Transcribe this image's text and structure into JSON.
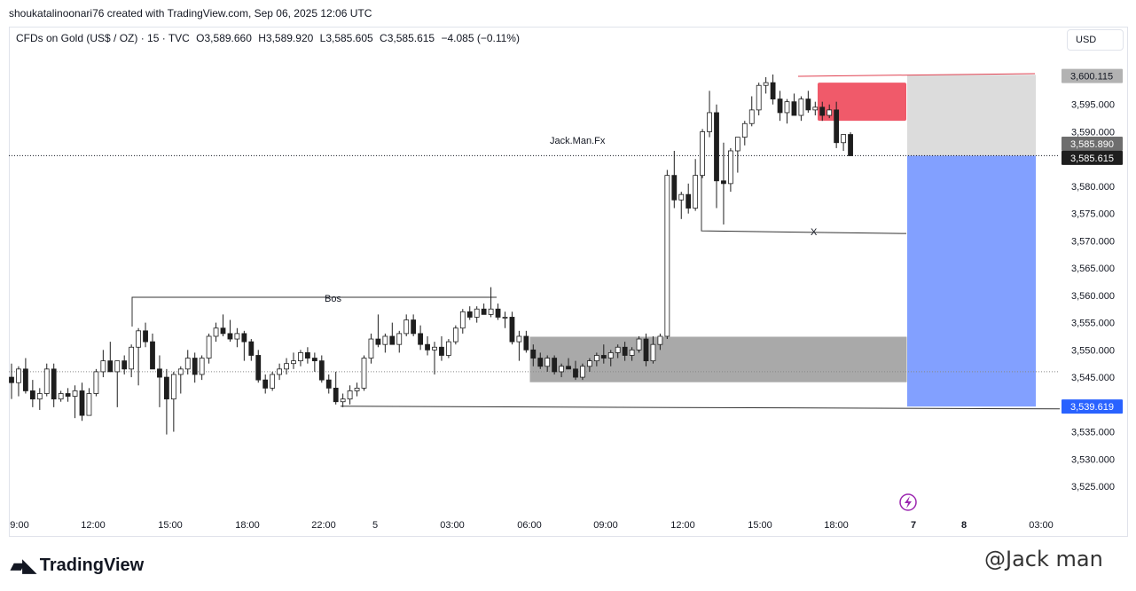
{
  "header": {
    "created_by": "shoukatalinoonari76 created with TradingView.com, Sep 06, 2025 12:06 UTC"
  },
  "symbol_bar": {
    "name": "CFDs on Gold (US$ / OZ) · 15 · TVC",
    "open": "O3,589.660",
    "high": "H3,589.920",
    "low": "L3,585.605",
    "close": "C3,585.615",
    "change": "−4.085 (−0.11%)"
  },
  "currency_button": "USD",
  "annotations": {
    "bos": "Bos",
    "x": "X",
    "author": "Jack.Man.Fx"
  },
  "price_labels": {
    "target_price": "3,600.115",
    "last_close": "3,585.890",
    "current_price": "3,585.615",
    "stop_price": "3,539.619"
  },
  "footer": {
    "logo": "TradingView",
    "watermark": "@Jack man"
  },
  "colors": {
    "up_candle": "#ffffff",
    "down_candle": "#1e1e1e",
    "supply_zone": "#f05a6a",
    "demand_zone": "#a9a9a9",
    "target_box": "#dcdcdc",
    "stop_box": "#82a0ff",
    "price_badge": "#2962ff"
  },
  "chart_data": {
    "type": "candlestick",
    "title": "CFDs on Gold (US$ / OZ) · 15 · TVC",
    "y_ticks": [
      "3,595.000",
      "3,590.000",
      "3,580.000",
      "3,575.000",
      "3,570.000",
      "3,565.000",
      "3,560.000",
      "3,555.000",
      "3,550.000",
      "3,545.000",
      "3,535.000",
      "3,530.000",
      "3,525.000"
    ],
    "x_ticks": [
      "9:00",
      "12:00",
      "15:00",
      "18:00",
      "22:00",
      "5",
      "03:00",
      "06:00",
      "09:00",
      "12:00",
      "15:00",
      "18:00",
      "7",
      "8",
      "03:00"
    ],
    "ylim": [
      3520,
      3605
    ],
    "grid": false,
    "candles": [
      [
        3545.0,
        3547.5,
        3541.0,
        3544.0
      ],
      [
        3544.0,
        3547.0,
        3541.5,
        3546.5
      ],
      [
        3546.5,
        3548.5,
        3542.0,
        3542.5
      ],
      [
        3542.5,
        3544.5,
        3539.5,
        3541.0
      ],
      [
        3541.0,
        3543.0,
        3539.0,
        3542.0
      ],
      [
        3542.0,
        3547.5,
        3541.5,
        3546.5
      ],
      [
        3546.5,
        3547.5,
        3539.5,
        3541.0
      ],
      [
        3541.0,
        3542.5,
        3540.5,
        3542.0
      ],
      [
        3542.0,
        3543.0,
        3540.5,
        3541.5
      ],
      [
        3541.5,
        3543.5,
        3537.5,
        3542.5
      ],
      [
        3542.5,
        3544.0,
        3537.0,
        3538.0
      ],
      [
        3538.0,
        3543.0,
        3538.0,
        3542.0
      ],
      [
        3542.0,
        3546.5,
        3541.5,
        3546.0
      ],
      [
        3546.0,
        3550.0,
        3545.0,
        3548.0
      ],
      [
        3548.0,
        3551.5,
        3546.5,
        3546.0
      ],
      [
        3546.0,
        3548.0,
        3539.5,
        3548.0
      ],
      [
        3548.0,
        3549.0,
        3545.5,
        3546.5
      ],
      [
        3546.5,
        3551.0,
        3545.0,
        3550.5
      ],
      [
        3550.5,
        3554.0,
        3543.5,
        3553.5
      ],
      [
        3553.5,
        3555.0,
        3550.5,
        3551.5
      ],
      [
        3551.5,
        3553.0,
        3546.5,
        3546.5
      ],
      [
        3546.5,
        3549.0,
        3539.5,
        3545.0
      ],
      [
        3545.0,
        3546.5,
        3534.5,
        3541.0
      ],
      [
        3541.0,
        3546.0,
        3535.0,
        3545.5
      ],
      [
        3545.5,
        3547.0,
        3542.0,
        3546.5
      ],
      [
        3546.5,
        3550.0,
        3545.5,
        3548.5
      ],
      [
        3548.5,
        3549.5,
        3544.0,
        3545.5
      ],
      [
        3545.5,
        3549.0,
        3544.5,
        3548.5
      ],
      [
        3548.5,
        3553.0,
        3547.5,
        3552.5
      ],
      [
        3552.5,
        3555.0,
        3551.5,
        3554.0
      ],
      [
        3554.0,
        3556.5,
        3552.5,
        3553.0
      ],
      [
        3553.0,
        3555.5,
        3551.5,
        3552.0
      ],
      [
        3552.0,
        3554.0,
        3550.5,
        3553.0
      ],
      [
        3553.0,
        3553.5,
        3548.0,
        3551.5
      ],
      [
        3551.5,
        3552.0,
        3548.0,
        3549.0
      ],
      [
        3549.0,
        3550.0,
        3544.0,
        3544.5
      ],
      [
        3544.5,
        3545.5,
        3542.0,
        3543.0
      ],
      [
        3543.0,
        3546.0,
        3542.5,
        3545.5
      ],
      [
        3545.5,
        3547.5,
        3544.5,
        3546.5
      ],
      [
        3546.5,
        3548.5,
        3545.5,
        3547.5
      ],
      [
        3547.5,
        3549.5,
        3546.5,
        3548.0
      ],
      [
        3548.0,
        3550.0,
        3547.0,
        3549.5
      ],
      [
        3549.5,
        3550.5,
        3547.5,
        3548.5
      ],
      [
        3548.5,
        3549.5,
        3546.0,
        3548.0
      ],
      [
        3548.0,
        3549.0,
        3544.0,
        3544.5
      ],
      [
        3544.5,
        3545.5,
        3542.0,
        3543.0
      ],
      [
        3543.0,
        3546.0,
        3540.0,
        3540.5
      ],
      [
        3540.5,
        3542.0,
        3539.5,
        3541.0
      ],
      [
        3541.0,
        3543.5,
        3540.0,
        3542.5
      ],
      [
        3542.5,
        3544.0,
        3541.5,
        3543.0
      ],
      [
        3543.0,
        3549.0,
        3542.5,
        3548.5
      ],
      [
        3548.5,
        3553.0,
        3547.5,
        3552.0
      ],
      [
        3552.0,
        3556.5,
        3550.5,
        3551.0
      ],
      [
        3551.0,
        3553.0,
        3549.5,
        3552.5
      ],
      [
        3552.5,
        3555.0,
        3551.5,
        3551.0
      ],
      [
        3551.0,
        3553.5,
        3549.5,
        3553.0
      ],
      [
        3553.0,
        3556.5,
        3552.5,
        3555.5
      ],
      [
        3555.5,
        3556.5,
        3552.5,
        3553.0
      ],
      [
        3553.0,
        3554.5,
        3550.0,
        3551.0
      ],
      [
        3551.0,
        3552.5,
        3549.0,
        3550.0
      ],
      [
        3550.0,
        3551.5,
        3545.5,
        3550.5
      ],
      [
        3550.5,
        3552.5,
        3548.0,
        3549.0
      ],
      [
        3549.0,
        3552.0,
        3548.5,
        3551.5
      ],
      [
        3551.5,
        3554.5,
        3551.0,
        3554.0
      ],
      [
        3554.0,
        3557.5,
        3553.0,
        3557.0
      ],
      [
        3557.0,
        3558.0,
        3555.5,
        3556.0
      ],
      [
        3556.0,
        3558.0,
        3555.0,
        3557.5
      ],
      [
        3557.5,
        3558.5,
        3556.5,
        3556.5
      ],
      [
        3556.5,
        3561.5,
        3556.0,
        3557.5
      ],
      [
        3557.5,
        3558.5,
        3555.5,
        3556.0
      ],
      [
        3556.0,
        3557.0,
        3554.0,
        3556.0
      ],
      [
        3556.0,
        3557.0,
        3551.0,
        3551.5
      ],
      [
        3551.5,
        3553.5,
        3548.0,
        3552.5
      ],
      [
        3552.5,
        3553.5,
        3549.5,
        3550.0
      ],
      [
        3550.0,
        3551.0,
        3547.0,
        3548.5
      ],
      [
        3548.5,
        3549.5,
        3546.5,
        3547.0
      ],
      [
        3547.0,
        3549.0,
        3546.0,
        3548.5
      ],
      [
        3548.5,
        3549.0,
        3545.5,
        3546.0
      ],
      [
        3546.0,
        3547.5,
        3545.0,
        3547.0
      ],
      [
        3547.0,
        3548.5,
        3546.5,
        3546.5
      ],
      [
        3546.5,
        3548.0,
        3544.5,
        3545.0
      ],
      [
        3545.0,
        3547.5,
        3544.5,
        3547.0
      ],
      [
        3547.0,
        3548.5,
        3546.0,
        3548.0
      ],
      [
        3548.0,
        3549.5,
        3547.0,
        3549.0
      ],
      [
        3549.0,
        3551.0,
        3547.5,
        3548.5
      ],
      [
        3548.5,
        3550.0,
        3547.0,
        3549.5
      ],
      [
        3549.5,
        3551.0,
        3548.5,
        3550.5
      ],
      [
        3550.5,
        3551.5,
        3548.0,
        3549.0
      ],
      [
        3549.0,
        3550.5,
        3548.0,
        3550.0
      ],
      [
        3550.0,
        3552.5,
        3549.5,
        3552.0
      ],
      [
        3552.0,
        3553.0,
        3547.0,
        3548.0
      ],
      [
        3548.0,
        3552.5,
        3547.5,
        3551.0
      ],
      [
        3551.0,
        3553.0,
        3550.0,
        3552.5
      ],
      [
        3552.5,
        3583.0,
        3552.0,
        3582.0
      ],
      [
        3582.0,
        3586.5,
        3576.0,
        3577.5
      ],
      [
        3577.5,
        3579.0,
        3574.0,
        3578.5
      ],
      [
        3578.5,
        3580.5,
        3575.0,
        3576.0
      ],
      [
        3576.0,
        3585.0,
        3575.5,
        3582.0
      ],
      [
        3582.0,
        3590.5,
        3581.5,
        3590.0
      ],
      [
        3590.0,
        3597.5,
        3589.0,
        3593.5
      ],
      [
        3593.5,
        3595.0,
        3576.0,
        3581.0
      ],
      [
        3581.0,
        3588.0,
        3573.0,
        3580.5
      ],
      [
        3580.5,
        3587.0,
        3579.0,
        3586.5
      ],
      [
        3586.5,
        3589.0,
        3582.5,
        3589.0
      ],
      [
        3589.0,
        3592.0,
        3587.5,
        3591.5
      ],
      [
        3591.5,
        3596.5,
        3591.0,
        3594.0
      ],
      [
        3594.0,
        3599.0,
        3593.0,
        3598.5
      ],
      [
        3598.5,
        3600.0,
        3597.0,
        3599.0
      ],
      [
        3599.0,
        3600.5,
        3595.0,
        3596.0
      ],
      [
        3596.0,
        3597.5,
        3592.0,
        3593.5
      ],
      [
        3593.5,
        3596.0,
        3591.5,
        3595.5
      ],
      [
        3595.5,
        3597.0,
        3593.0,
        3593.0
      ],
      [
        3593.0,
        3596.5,
        3592.0,
        3596.0
      ],
      [
        3596.0,
        3597.5,
        3593.5,
        3594.0
      ],
      [
        3594.0,
        3595.5,
        3593.0,
        3594.5
      ],
      [
        3594.5,
        3595.5,
        3592.0,
        3593.0
      ],
      [
        3593.0,
        3595.0,
        3592.5,
        3594.0
      ],
      [
        3594.0,
        3595.5,
        3587.0,
        3588.0
      ],
      [
        3588.0,
        3589.5,
        3586.5,
        3589.5
      ],
      [
        3589.5,
        3589.9,
        3585.6,
        3585.6
      ]
    ],
    "supply_zone": {
      "from": 3599.0,
      "to": 3592.0
    },
    "demand_zone": {
      "from": 3552.5,
      "to": 3544.0
    },
    "position": {
      "entry": 3585.615,
      "target": 3600.115,
      "stop": 3539.619
    },
    "levels": {
      "bos": 3559.5,
      "x": 3571.5,
      "low_line": 3540.0,
      "dotted": 3585.615,
      "dotted_lower": 3546.0
    }
  }
}
